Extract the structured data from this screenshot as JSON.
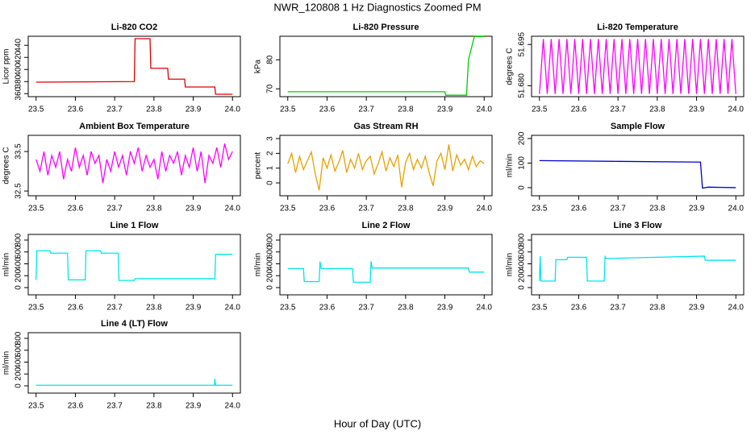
{
  "title": "NWR_120808  1 Hz Diagnostics Zoomed PM",
  "x_label": "Hour of Day (UTC)",
  "chart_data": [
    {
      "type": "line",
      "title": "Li-820 CO2",
      "y_label": "Licor ppm",
      "color": "#dd0000",
      "x": [
        23.5,
        23.75,
        23.752,
        23.79,
        23.792,
        23.835,
        23.837,
        23.878,
        23.88,
        23.955,
        23.957,
        24.0
      ],
      "values": [
        379,
        380,
        451,
        451,
        402,
        402,
        384,
        384,
        371,
        371,
        359,
        359
      ],
      "xlim": [
        23.48,
        24.02
      ],
      "xticks": [
        23.5,
        23.6,
        23.7,
        23.8,
        23.9,
        {
          "value": 24,
          "label": "24.0"
        }
      ],
      "ylim": [
        355,
        455
      ],
      "yticks": [
        360,
        380,
        400,
        420,
        440
      ]
    },
    {
      "type": "line",
      "title": "Li-820 Pressure",
      "y_label": "kPa",
      "color": "#00cc00",
      "x": [
        23.5,
        23.9,
        23.902,
        23.955,
        23.96,
        23.975,
        24.0
      ],
      "values": [
        69,
        69,
        67.8,
        67.8,
        80,
        88,
        88
      ],
      "xlim": [
        23.48,
        24.02
      ],
      "xticks": [
        23.5,
        23.6,
        23.7,
        23.8,
        23.9,
        {
          "value": 24,
          "label": "24.0"
        }
      ],
      "ylim": [
        67.3,
        88.1
      ],
      "yticks": [
        70,
        80
      ]
    },
    {
      "type": "line",
      "title": "Li-820 Temperature",
      "y_label": "degrees C",
      "color": "#ff00ff",
      "x": [
        23.5,
        23.51,
        23.52,
        23.53,
        23.54,
        23.55,
        23.56,
        23.57,
        23.58,
        23.59,
        23.6,
        23.61,
        23.62,
        23.63,
        23.64,
        23.65,
        23.66,
        23.67,
        23.68,
        23.69,
        23.7,
        23.71,
        23.72,
        23.73,
        23.74,
        23.75,
        23.76,
        23.77,
        23.78,
        23.79,
        23.8,
        23.81,
        23.82,
        23.83,
        23.84,
        23.85,
        23.86,
        23.87,
        23.88,
        23.89,
        23.9,
        23.91,
        23.92,
        23.93,
        23.94,
        23.95,
        23.96,
        23.97,
        23.98,
        23.99,
        24
      ],
      "values": [
        51.677,
        51.697,
        51.677,
        51.697,
        51.677,
        51.697,
        51.677,
        51.697,
        51.677,
        51.697,
        51.677,
        51.697,
        51.677,
        51.697,
        51.677,
        51.697,
        51.677,
        51.697,
        51.677,
        51.697,
        51.677,
        51.697,
        51.677,
        51.697,
        51.677,
        51.697,
        51.677,
        51.697,
        51.677,
        51.697,
        51.677,
        51.697,
        51.677,
        51.697,
        51.677,
        51.697,
        51.677,
        51.697,
        51.677,
        51.697,
        51.677,
        51.697,
        51.677,
        51.697,
        51.677,
        51.697,
        51.677,
        51.697,
        51.677,
        51.697,
        51.677
      ],
      "xlim": [
        23.48,
        24.02
      ],
      "xticks": [
        23.5,
        23.6,
        23.7,
        23.8,
        23.9,
        {
          "value": 24,
          "label": "24.0"
        }
      ],
      "ylim": [
        51.676,
        51.698
      ],
      "yticks": [
        {
          "value": 51.68,
          "label": "51.680"
        },
        51.695
      ]
    },
    {
      "type": "line",
      "title": "Ambient Box Temperature",
      "y_label": "degrees C",
      "color": "#ff00ff",
      "x": [
        23.5,
        23.51,
        23.52,
        23.53,
        23.54,
        23.55,
        23.56,
        23.57,
        23.58,
        23.59,
        23.6,
        23.61,
        23.62,
        23.63,
        23.64,
        23.65,
        23.66,
        23.67,
        23.68,
        23.69,
        23.7,
        23.71,
        23.72,
        23.73,
        23.74,
        23.75,
        23.76,
        23.77,
        23.78,
        23.79,
        23.8,
        23.81,
        23.82,
        23.83,
        23.84,
        23.85,
        23.86,
        23.87,
        23.88,
        23.89,
        23.9,
        23.91,
        23.92,
        23.93,
        23.94,
        23.95,
        23.96,
        23.97,
        23.98,
        23.99,
        24
      ],
      "values": [
        33.3,
        33.0,
        33.5,
        32.9,
        33.4,
        33.1,
        33.5,
        32.8,
        33.3,
        33.0,
        33.6,
        33.1,
        33.4,
        32.9,
        33.5,
        33.2,
        33.4,
        32.7,
        33.3,
        33.0,
        33.5,
        33.1,
        33.4,
        32.9,
        33.5,
        33.2,
        33.6,
        33.0,
        33.4,
        33.1,
        33.3,
        32.8,
        33.5,
        33.0,
        33.4,
        33.2,
        33.5,
        32.9,
        33.4,
        33.1,
        33.6,
        33.0,
        33.5,
        32.7,
        33.4,
        33.2,
        33.6,
        33.1,
        33.7,
        33.3,
        33.5
      ],
      "xlim": [
        23.48,
        24.02
      ],
      "xticks": [
        23.5,
        23.6,
        23.7,
        23.8,
        23.9,
        {
          "value": 24,
          "label": "24.0"
        }
      ],
      "ylim": [
        32.38,
        33.91
      ],
      "yticks": [
        32.5,
        33.5
      ]
    },
    {
      "type": "line",
      "title": "Gas Stream RH",
      "y_label": "percent",
      "color": "#e8a000",
      "x": [
        23.5,
        23.51,
        23.52,
        23.53,
        23.54,
        23.55,
        23.56,
        23.57,
        23.58,
        23.59,
        23.6,
        23.61,
        23.62,
        23.63,
        23.64,
        23.65,
        23.66,
        23.67,
        23.68,
        23.69,
        23.7,
        23.71,
        23.72,
        23.73,
        23.74,
        23.75,
        23.76,
        23.77,
        23.78,
        23.79,
        23.8,
        23.81,
        23.82,
        23.83,
        23.84,
        23.85,
        23.86,
        23.87,
        23.88,
        23.89,
        23.9,
        23.91,
        23.92,
        23.93,
        23.94,
        23.95,
        23.96,
        23.97,
        23.98,
        23.99,
        24
      ],
      "values": [
        1.3,
        2.0,
        0.7,
        1.8,
        0.9,
        1.5,
        2.1,
        0.6,
        -0.5,
        1.7,
        1.0,
        1.9,
        0.8,
        1.4,
        2.2,
        0.7,
        1.6,
        1.0,
        2.0,
        0.9,
        1.5,
        1.8,
        0.6,
        1.3,
        2.1,
        0.8,
        1.7,
        1.1,
        1.9,
        -0.3,
        1.4,
        2.0,
        0.9,
        1.6,
        1.0,
        1.8,
        0.7,
        -0.2,
        1.5,
        2.0,
        0.9,
        2.6,
        0.8,
        1.9,
        1.2,
        1.6,
        0.9,
        1.8,
        1.1,
        1.5,
        1.3
      ],
      "xlim": [
        23.48,
        24.02
      ],
      "xticks": [
        23.5,
        23.6,
        23.7,
        23.8,
        23.9,
        {
          "value": 24,
          "label": "24.0"
        }
      ],
      "ylim": [
        -0.87,
        3.22
      ],
      "yticks": [
        0,
        1,
        2,
        3
      ]
    },
    {
      "type": "line",
      "title": "Sample Flow",
      "y_label": "ml/min",
      "color": "#0000cc",
      "x": [
        23.5,
        23.7,
        23.91,
        23.915,
        23.93,
        24.0
      ],
      "values": [
        110,
        107,
        104,
        -2,
        2,
        0
      ],
      "xlim": [
        23.48,
        24.02
      ],
      "xticks": [
        23.5,
        23.6,
        23.7,
        23.8,
        23.9,
        {
          "value": 24,
          "label": "24.0"
        }
      ],
      "ylim": [
        -33,
        213
      ],
      "yticks": [
        0,
        100,
        200
      ]
    },
    {
      "type": "line",
      "title": "Line 1 Flow",
      "y_label": "ml/min",
      "color": "#00e5ee",
      "x": [
        23.5,
        23.502,
        23.535,
        23.537,
        23.58,
        23.582,
        23.625,
        23.627,
        23.664,
        23.666,
        23.709,
        23.711,
        23.75,
        23.752,
        23.955,
        23.957,
        24.0
      ],
      "values": [
        130,
        620,
        620,
        580,
        580,
        130,
        130,
        620,
        620,
        580,
        580,
        120,
        120,
        150,
        150,
        560,
        560
      ],
      "xlim": [
        23.48,
        24.02
      ],
      "xticks": [
        23.5,
        23.6,
        23.7,
        23.8,
        23.9,
        {
          "value": 24,
          "label": "24.0"
        }
      ],
      "ylim": [
        -122,
        895
      ],
      "yticks": [
        0,
        200,
        400,
        600,
        800
      ]
    },
    {
      "type": "line",
      "title": "Line 2 Flow",
      "y_label": "ml/min",
      "color": "#00e5ee",
      "x": [
        23.5,
        23.54,
        23.542,
        23.58,
        23.582,
        23.585,
        23.665,
        23.667,
        23.71,
        23.712,
        23.715,
        23.96,
        23.962,
        24.0
      ],
      "values": [
        320,
        320,
        100,
        100,
        440,
        320,
        320,
        90,
        90,
        440,
        330,
        330,
        260,
        260
      ],
      "xlim": [
        23.48,
        24.02
      ],
      "xticks": [
        23.5,
        23.6,
        23.7,
        23.8,
        23.9,
        {
          "value": 24,
          "label": "24.0"
        }
      ],
      "ylim": [
        -122,
        895
      ],
      "yticks": [
        0,
        200,
        400,
        600,
        800
      ]
    },
    {
      "type": "line",
      "title": "Line 3 Flow",
      "y_label": "ml/min",
      "color": "#00e5ee",
      "x": [
        23.5,
        23.502,
        23.504,
        23.54,
        23.542,
        23.57,
        23.572,
        23.62,
        23.622,
        23.665,
        23.667,
        23.67,
        23.92,
        23.922,
        24.0
      ],
      "values": [
        110,
        530,
        110,
        110,
        470,
        470,
        510,
        510,
        110,
        110,
        520,
        490,
        530,
        460,
        460
      ],
      "xlim": [
        23.48,
        24.02
      ],
      "xticks": [
        23.5,
        23.6,
        23.7,
        23.8,
        23.9,
        {
          "value": 24,
          "label": "24.0"
        }
      ],
      "ylim": [
        -122,
        895
      ],
      "yticks": [
        0,
        200,
        400,
        600,
        800
      ]
    },
    {
      "type": "line",
      "title": "Line 4 (LT) Flow",
      "y_label": "ml/min",
      "color": "#00e5ee",
      "x": [
        23.5,
        23.954,
        23.955,
        23.957,
        24.0
      ],
      "values": [
        10,
        10,
        120,
        10,
        10
      ],
      "xlim": [
        23.48,
        24.02
      ],
      "xticks": [
        23.5,
        23.6,
        23.7,
        23.8,
        23.9,
        {
          "value": 24,
          "label": "24.0"
        }
      ],
      "ylim": [
        -122,
        895
      ],
      "yticks": [
        0,
        200,
        400,
        600,
        800
      ]
    }
  ]
}
